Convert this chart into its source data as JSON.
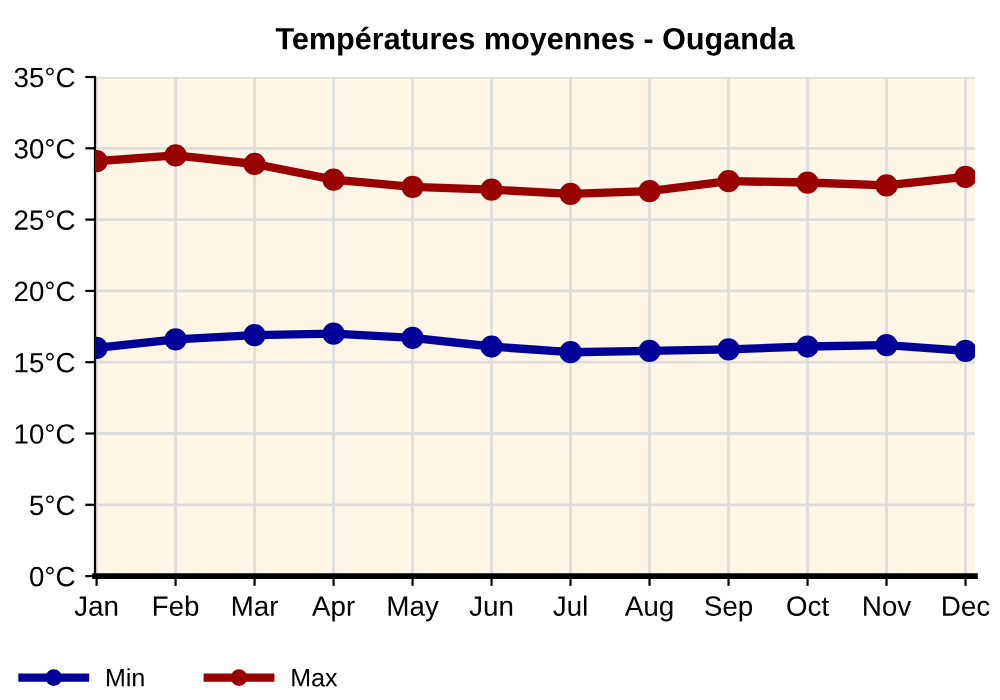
{
  "chart_data": {
    "type": "line",
    "title": "Températures moyennes - Ouganda",
    "categories": [
      "Jan",
      "Feb",
      "Mar",
      "Apr",
      "May",
      "Jun",
      "Jul",
      "Aug",
      "Sep",
      "Oct",
      "Nov",
      "Dec"
    ],
    "series": [
      {
        "name": "Min",
        "color": "#000099",
        "values": [
          16.0,
          16.6,
          16.9,
          17.0,
          16.7,
          16.1,
          15.7,
          15.8,
          15.9,
          16.1,
          16.2,
          15.8
        ]
      },
      {
        "name": "Max",
        "color": "#990000",
        "values": [
          29.1,
          29.5,
          28.9,
          27.8,
          27.3,
          27.1,
          26.8,
          27.0,
          27.7,
          27.6,
          27.4,
          28.0
        ]
      }
    ],
    "ylim": [
      0,
      35
    ],
    "yticks": [
      {
        "value": 0,
        "label": "0°C"
      },
      {
        "value": 5,
        "label": "5°C"
      },
      {
        "value": 10,
        "label": "10°C"
      },
      {
        "value": 15,
        "label": "15°C"
      },
      {
        "value": 20,
        "label": "20°C"
      },
      {
        "value": 25,
        "label": "25°C"
      },
      {
        "value": 30,
        "label": "30°C"
      },
      {
        "value": 35,
        "label": "35°C"
      }
    ],
    "grid": true,
    "legend": "bottom left",
    "marker": "circle",
    "line_style": "solid"
  }
}
